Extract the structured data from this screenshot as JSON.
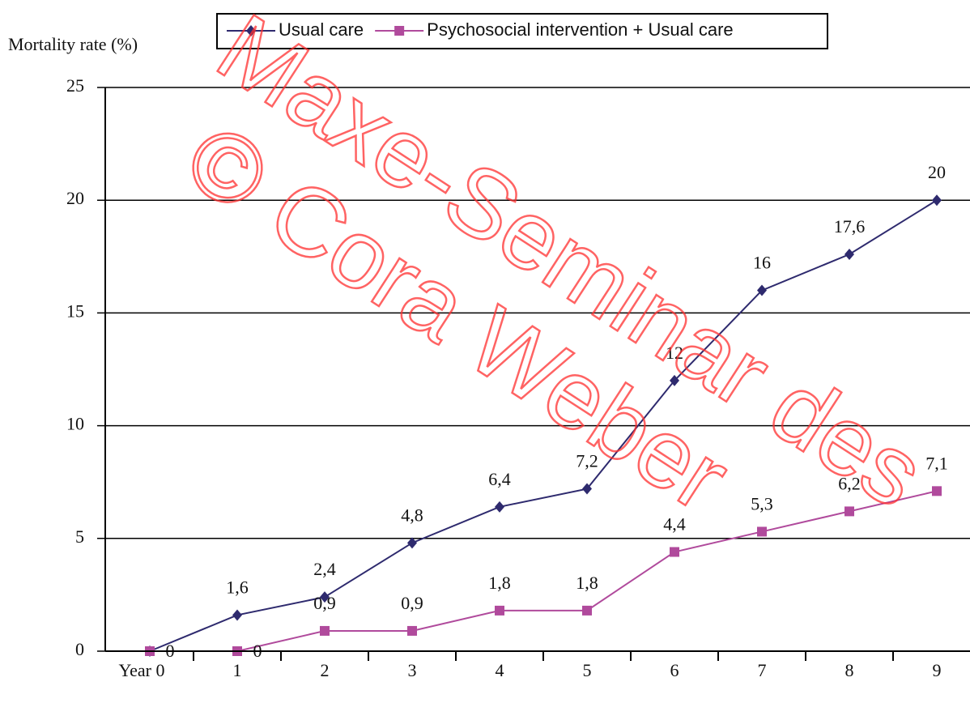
{
  "chart_data": {
    "type": "line",
    "y_label": "Mortality rate (%)",
    "categories": [
      "Year 0",
      "1",
      "2",
      "3",
      "4",
      "5",
      "6",
      "7",
      "8",
      "9"
    ],
    "series": [
      {
        "name": "Usual care",
        "color": "#2e2a6e",
        "marker": "diamond",
        "values": [
          0,
          1.6,
          2.4,
          4.8,
          6.4,
          7.2,
          12,
          16,
          17.6,
          20
        ],
        "value_labels": [
          null,
          "1,6",
          "2,4",
          "4,8",
          "6,4",
          "7,2",
          "12",
          "16",
          "17,6",
          "20"
        ]
      },
      {
        "name": "Psychosocial intervention + Usual care",
        "color": "#b04a9c",
        "marker": "square",
        "values": [
          0,
          0,
          0.9,
          0.9,
          1.8,
          1.8,
          4.4,
          5.3,
          6.2,
          7.1
        ],
        "value_labels": [
          "0",
          "0",
          "0,9",
          "0,9",
          "1,8",
          "1,8",
          "4,4",
          "5,3",
          "6,2",
          "7,1"
        ]
      }
    ],
    "ylim": [
      0,
      25
    ],
    "yticks": [
      0,
      5,
      10,
      15,
      20,
      25
    ],
    "grid": true,
    "legend": "top",
    "watermark": [
      "Maxe-Seminar des",
      "© Cora Weber"
    ]
  }
}
